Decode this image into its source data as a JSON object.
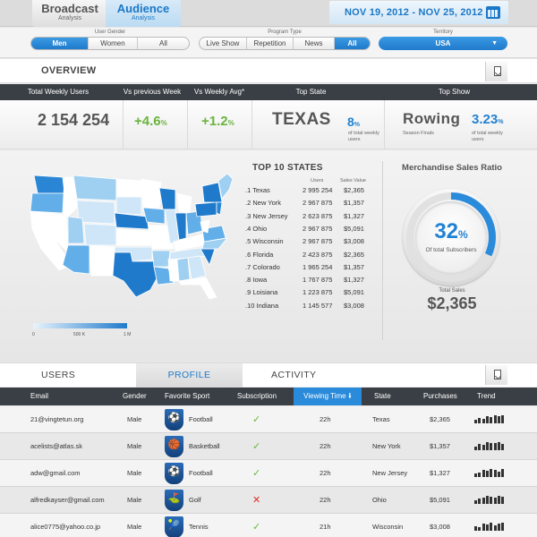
{
  "app": {
    "tabs": [
      {
        "title": "Broadcast",
        "subtitle": "Analysis"
      },
      {
        "title": "Audience",
        "subtitle": "Analysis"
      }
    ],
    "date_range": "NOV 19, 2012 - NOV 25, 2012",
    "calendar_icon": "calendar-icon"
  },
  "filters": {
    "gender_label": "User Gender",
    "gender_options": [
      "Men",
      "Women",
      "All"
    ],
    "gender_selected": "Men",
    "program_label": "Program Type",
    "program_options": [
      "Live Show",
      "Repetition",
      "News",
      "All"
    ],
    "program_selected": "All",
    "territory_label": "Territory",
    "territory_value": "USA"
  },
  "overview": {
    "title": "OVERVIEW",
    "headers": [
      "Total Weekly Users",
      "Vs previous Week",
      "Vs Weekly Avg*",
      "Top State",
      "Top Show"
    ],
    "total_users": "2 154 254",
    "vs_prev": "+4.6",
    "vs_prev_unit": "%",
    "vs_avg": "+1.2",
    "vs_avg_unit": "%",
    "top_state": "TEXAS",
    "top_state_pct": "8",
    "top_state_pct_unit": "%",
    "top_state_caption": "of total weekly users",
    "top_show": "Rowing",
    "top_show_caption": "Season Finals",
    "top_show_pct": "3.23",
    "top_show_pct_unit": "%",
    "top_show_pct_caption": "of total weekly users"
  },
  "map": {
    "legend_labels": [
      "0",
      "500 K",
      "1 M"
    ],
    "colors": {
      "low": "#e8f4fd",
      "high": "#1f7acb"
    }
  },
  "top10": {
    "title": "TOP 10 STATES",
    "col_users": "Users",
    "col_sales": "Sales Value",
    "rows": [
      {
        "rank": ".1",
        "state": "Texas",
        "users": "2 995 254",
        "sales": "$2,365"
      },
      {
        "rank": ".2",
        "state": "New York",
        "users": "2 967 875",
        "sales": "$1,357"
      },
      {
        "rank": ".3",
        "state": "New Jersey",
        "users": "2 623 875",
        "sales": "$1,327"
      },
      {
        "rank": ".4",
        "state": "Ohio",
        "users": "2 967 875",
        "sales": "$5,091"
      },
      {
        "rank": ".5",
        "state": "Wisconsin",
        "users": "2 967 875",
        "sales": "$3,008"
      },
      {
        "rank": ".6",
        "state": "Florida",
        "users": "2 423 875",
        "sales": "$2,365"
      },
      {
        "rank": ".7",
        "state": "Colorado",
        "users": "1 965 254",
        "sales": "$1,357"
      },
      {
        "rank": ".8",
        "state": "Iowa",
        "users": "1 767 875",
        "sales": "$1,327"
      },
      {
        "rank": ".9",
        "state": "Loisiana",
        "users": "1 223 875",
        "sales": "$5,091"
      },
      {
        "rank": ".10",
        "state": "Indiana",
        "users": "1 145 577",
        "sales": "$3,008"
      }
    ]
  },
  "merch": {
    "title": "Merchandise Sales Ratio",
    "ratio": "32",
    "ratio_unit": "%",
    "ratio_fraction": 0.32,
    "ratio_caption": "Of total Subscribers",
    "total_label": "Total Sales",
    "total_value": "$2,365"
  },
  "lower_tabs": [
    {
      "label": "USERS",
      "active": false
    },
    {
      "label": "PROFILE",
      "active": true
    },
    {
      "label": "ACTIVITY",
      "active": false
    }
  ],
  "table": {
    "headers": [
      "Email",
      "Gender",
      "Favorite Sport",
      "Subscription",
      "Viewing Time",
      "State",
      "Purchases",
      "Trend"
    ],
    "sort_icon": "sort-down-icon",
    "rows": [
      {
        "email": "21@vingtetun.org",
        "gender": "Male",
        "sport": "Football",
        "sport_icon": "football-icon",
        "subscribed": true,
        "viewing": "22h",
        "state": "Texas",
        "purchases": "$2,365",
        "trend": [
          0.4,
          0.7,
          0.6,
          0.9,
          0.8,
          1.0,
          0.9,
          1.0
        ]
      },
      {
        "email": "acelists@atlas.sk",
        "gender": "Male",
        "sport": "Basketball",
        "sport_icon": "basketball-icon",
        "subscribed": true,
        "viewing": "22h",
        "state": "New York",
        "purchases": "$1,357",
        "trend": [
          0.5,
          0.8,
          0.7,
          1.0,
          0.9,
          0.9,
          1.0,
          0.8
        ]
      },
      {
        "email": "adw@gmail.com",
        "gender": "Male",
        "sport": "Football",
        "sport_icon": "football-icon",
        "subscribed": true,
        "viewing": "22h",
        "state": "New Jersey",
        "purchases": "$1,327",
        "trend": [
          0.4,
          0.6,
          0.9,
          0.8,
          1.0,
          0.9,
          0.7,
          1.0
        ]
      },
      {
        "email": "alfredkayser@gmail.com",
        "gender": "Male",
        "sport": "Golf",
        "sport_icon": "golf-icon",
        "subscribed": false,
        "viewing": "22h",
        "state": "Ohio",
        "purchases": "$5,091",
        "trend": [
          0.5,
          0.7,
          0.8,
          1.0,
          0.9,
          0.8,
          1.0,
          0.9
        ]
      },
      {
        "email": "alice0775@yahoo.co.jp",
        "gender": "Male",
        "sport": "Tennis",
        "sport_icon": "tennis-icon",
        "subscribed": true,
        "viewing": "21h",
        "state": "Wisconsin",
        "purchases": "$3,008",
        "trend": [
          0.6,
          0.5,
          0.9,
          0.8,
          1.0,
          0.7,
          0.9,
          1.0
        ]
      }
    ]
  }
}
